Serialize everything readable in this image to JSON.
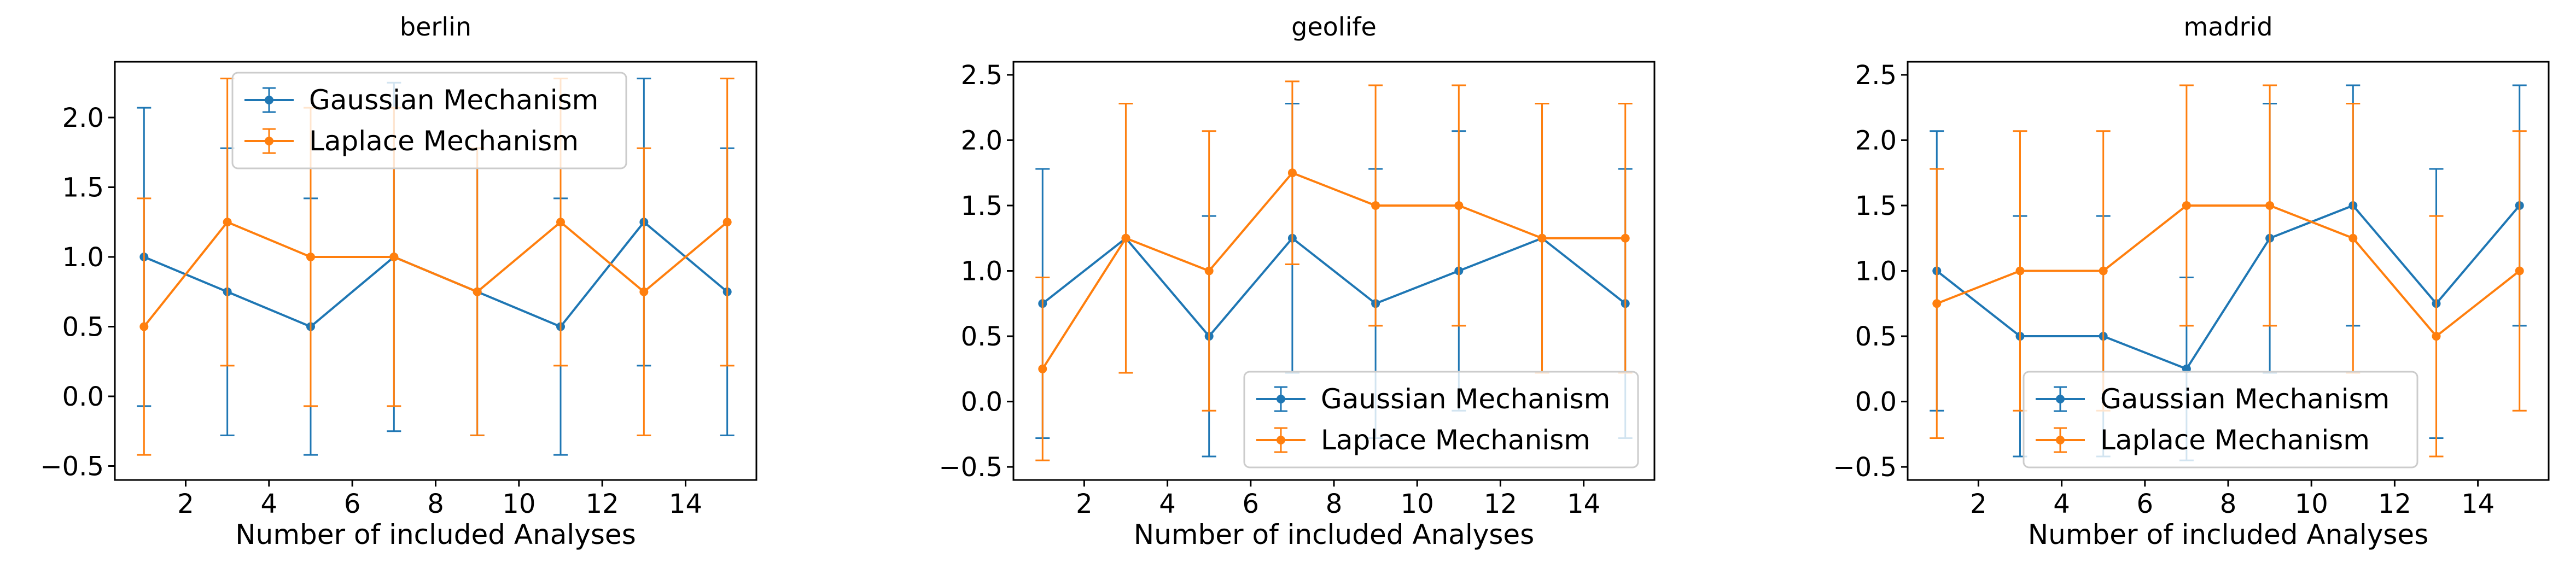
{
  "chart_data": [
    {
      "type": "line",
      "title": "berlin",
      "xlabel": "Number of included Analyses",
      "ylabel": "",
      "xlim": [
        0.3,
        15.7
      ],
      "ylim": [
        -0.6,
        2.4
      ],
      "xticks": [
        2,
        4,
        6,
        8,
        10,
        12,
        14
      ],
      "yticks": [
        -0.5,
        0.0,
        0.5,
        1.0,
        1.5,
        2.0
      ],
      "legend": "top-center",
      "x": [
        1,
        3,
        5,
        7,
        9,
        11,
        13,
        15
      ],
      "series": [
        {
          "name": "Gaussian Mechanism",
          "color": "#1f77b4",
          "values": [
            1.0,
            0.75,
            0.5,
            1.0,
            0.75,
            0.5,
            1.25,
            0.75
          ],
          "error": [
            1.07,
            1.03,
            0.92,
            1.25,
            1.03,
            0.92,
            1.03,
            1.03
          ]
        },
        {
          "name": "Laplace Mechanism",
          "color": "#ff7f0e",
          "values": [
            0.5,
            1.25,
            1.0,
            1.0,
            0.75,
            1.25,
            0.75,
            1.25
          ],
          "error": [
            0.92,
            1.03,
            1.07,
            1.07,
            1.03,
            1.03,
            1.03,
            1.03
          ]
        }
      ]
    },
    {
      "type": "line",
      "title": "geolife",
      "xlabel": "Number of included Analyses",
      "ylabel": "",
      "xlim": [
        0.3,
        15.7
      ],
      "ylim": [
        -0.6,
        2.6
      ],
      "xticks": [
        2,
        4,
        6,
        8,
        10,
        12,
        14
      ],
      "yticks": [
        -0.5,
        0.0,
        0.5,
        1.0,
        1.5,
        2.0,
        2.5
      ],
      "legend": "bottom-right",
      "x": [
        1,
        3,
        5,
        7,
        9,
        11,
        13,
        15
      ],
      "series": [
        {
          "name": "Gaussian Mechanism",
          "color": "#1f77b4",
          "values": [
            0.75,
            1.25,
            0.5,
            1.25,
            0.75,
            1.0,
            1.25,
            0.75
          ],
          "error": [
            1.03,
            1.03,
            0.92,
            1.03,
            1.03,
            1.07,
            1.03,
            1.03
          ]
        },
        {
          "name": "Laplace Mechanism",
          "color": "#ff7f0e",
          "values": [
            0.25,
            1.25,
            1.0,
            1.75,
            1.5,
            1.5,
            1.25,
            1.25
          ],
          "error": [
            0.7,
            1.03,
            1.07,
            0.7,
            0.92,
            0.92,
            1.03,
            1.03
          ]
        }
      ]
    },
    {
      "type": "line",
      "title": "madrid",
      "xlabel": "Number of included Analyses",
      "ylabel": "",
      "xlim": [
        0.3,
        15.7
      ],
      "ylim": [
        -0.6,
        2.6
      ],
      "xticks": [
        2,
        4,
        6,
        8,
        10,
        12,
        14
      ],
      "yticks": [
        -0.5,
        0.0,
        0.5,
        1.0,
        1.5,
        2.0,
        2.5
      ],
      "legend": "bottom-center",
      "x": [
        1,
        3,
        5,
        7,
        9,
        11,
        13,
        15
      ],
      "series": [
        {
          "name": "Gaussian Mechanism",
          "color": "#1f77b4",
          "values": [
            1.0,
            0.5,
            0.5,
            0.25,
            1.25,
            1.5,
            0.75,
            1.5
          ],
          "error": [
            1.07,
            0.92,
            0.92,
            0.7,
            1.03,
            0.92,
            1.03,
            0.92
          ]
        },
        {
          "name": "Laplace Mechanism",
          "color": "#ff7f0e",
          "values": [
            0.75,
            1.0,
            1.0,
            1.5,
            1.5,
            1.25,
            0.5,
            1.0
          ],
          "error": [
            1.03,
            1.07,
            1.07,
            0.92,
            0.92,
            1.03,
            0.92,
            1.07
          ]
        }
      ]
    }
  ]
}
